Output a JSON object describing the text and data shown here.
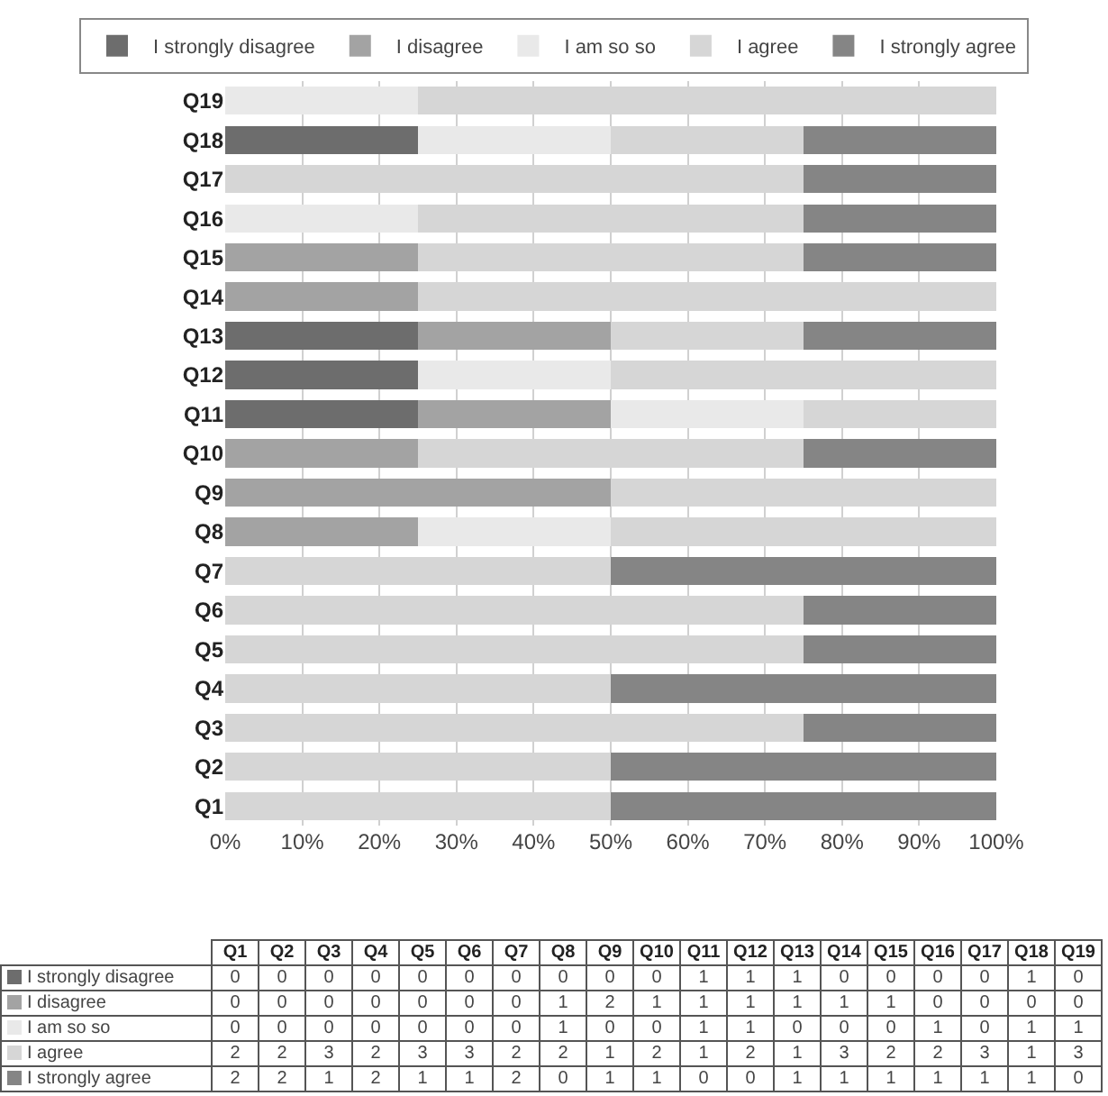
{
  "chart_data": [
    {
      "type": "bar",
      "orientation": "horizontal",
      "stacked": true,
      "grid": "x",
      "legend": "top",
      "categories": [
        "Q19",
        "Q18",
        "Q17",
        "Q16",
        "Q15",
        "Q14",
        "Q13",
        "Q12",
        "Q11",
        "Q10",
        "Q9",
        "Q8",
        "Q7",
        "Q6",
        "Q5",
        "Q4",
        "Q3",
        "Q2",
        "Q1"
      ],
      "xlim": [
        0,
        100
      ],
      "xticks": [
        {
          "value": 0,
          "label": "0%"
        },
        {
          "value": 10,
          "label": "10%"
        },
        {
          "value": 20,
          "label": "20%"
        },
        {
          "value": 30,
          "label": "30%"
        },
        {
          "value": 40,
          "label": "40%"
        },
        {
          "value": 50,
          "label": "50%"
        },
        {
          "value": 60,
          "label": "60%"
        },
        {
          "value": 70,
          "label": "70%"
        },
        {
          "value": 80,
          "label": "80%"
        },
        {
          "value": 90,
          "label": "90%"
        },
        {
          "value": 100,
          "label": "100%"
        }
      ],
      "series": [
        {
          "name": "I strongly disagree",
          "color": "#6d6d6d",
          "values": [
            0,
            25,
            0,
            0,
            0,
            0,
            25,
            25,
            25,
            0,
            0,
            0,
            0,
            0,
            0,
            0,
            0,
            0,
            0
          ]
        },
        {
          "name": "I disagree",
          "color": "#a3a3a3",
          "values": [
            0,
            0,
            0,
            0,
            25,
            25,
            25,
            0,
            25,
            25,
            50,
            25,
            0,
            0,
            0,
            0,
            0,
            0,
            0
          ]
        },
        {
          "name": "I am so so",
          "color": "#e9e9e9",
          "values": [
            25,
            25,
            0,
            25,
            0,
            0,
            0,
            25,
            25,
            0,
            0,
            25,
            0,
            0,
            0,
            0,
            0,
            0,
            0
          ]
        },
        {
          "name": "I agree",
          "color": "#d6d6d6",
          "values": [
            75,
            25,
            75,
            50,
            50,
            75,
            25,
            50,
            25,
            50,
            50,
            50,
            50,
            75,
            75,
            50,
            75,
            50,
            50
          ]
        },
        {
          "name": "I strongly agree",
          "color": "#858585",
          "values": [
            0,
            25,
            25,
            25,
            25,
            0,
            25,
            0,
            0,
            25,
            0,
            0,
            50,
            25,
            25,
            50,
            25,
            50,
            50
          ]
        }
      ]
    },
    {
      "type": "heatmap",
      "data_labels": true,
      "categories": [
        "Q1",
        "Q2",
        "Q3",
        "Q4",
        "Q5",
        "Q6",
        "Q7",
        "Q8",
        "Q9",
        "Q10",
        "Q11",
        "Q12",
        "Q13",
        "Q14",
        "Q15",
        "Q16",
        "Q17",
        "Q18",
        "Q19"
      ],
      "y_categories": [
        "I strongly disagree",
        "I disagree",
        "I am so so",
        "I agree",
        "I strongly agree"
      ],
      "cells": [
        [
          0,
          0,
          0,
          0,
          0,
          0,
          0,
          0,
          0,
          0,
          1,
          1,
          1,
          0,
          0,
          0,
          0,
          1,
          0
        ],
        [
          0,
          0,
          0,
          0,
          0,
          0,
          0,
          1,
          2,
          1,
          1,
          1,
          1,
          1,
          1,
          0,
          0,
          0,
          0
        ],
        [
          0,
          0,
          0,
          0,
          0,
          0,
          0,
          1,
          0,
          0,
          1,
          1,
          0,
          0,
          0,
          1,
          0,
          1,
          1
        ],
        [
          2,
          2,
          3,
          2,
          3,
          3,
          2,
          2,
          1,
          2,
          1,
          2,
          1,
          3,
          2,
          2,
          3,
          1,
          3
        ],
        [
          2,
          2,
          1,
          2,
          1,
          1,
          2,
          0,
          1,
          1,
          0,
          0,
          1,
          1,
          1,
          1,
          1,
          1,
          0
        ]
      ]
    }
  ]
}
